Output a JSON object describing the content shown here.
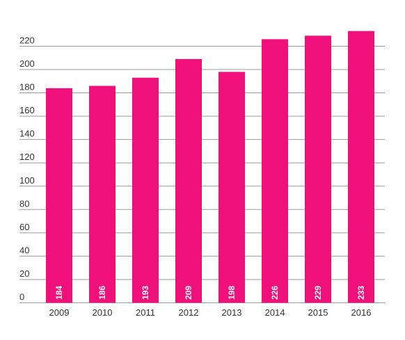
{
  "chart_data": {
    "type": "bar",
    "categories": [
      "2009",
      "2010",
      "2011",
      "2012",
      "2013",
      "2014",
      "2015",
      "2016"
    ],
    "values": [
      184,
      186,
      193,
      209,
      198,
      226,
      229,
      233
    ],
    "data_labels": [
      "184",
      "186",
      "193",
      "209",
      "198",
      "226",
      "229",
      "233"
    ],
    "y_ticks": [
      0,
      20,
      40,
      60,
      80,
      100,
      120,
      140,
      160,
      180,
      200,
      220
    ],
    "ylim": [
      0,
      240
    ],
    "grid": true,
    "bar_color": "#F0107A",
    "grid_color": "#999999",
    "title": "",
    "xlabel": "",
    "ylabel": ""
  }
}
